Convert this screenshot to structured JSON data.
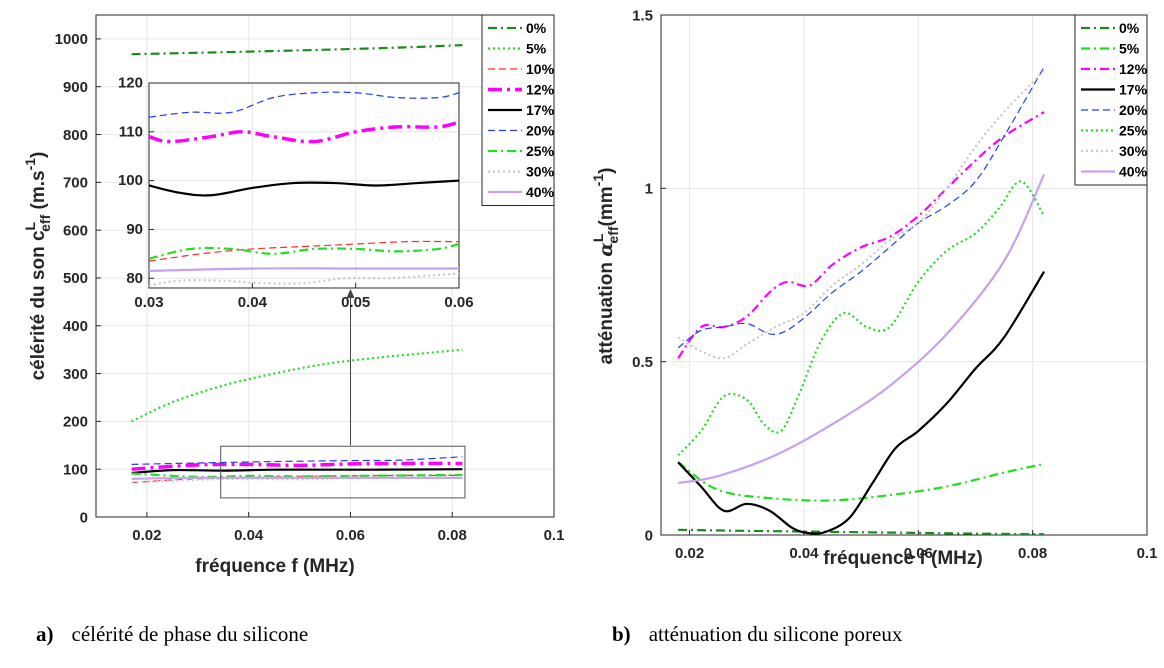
{
  "captions": {
    "a": {
      "letter": "a)",
      "text": "célérité de phase du silicone"
    },
    "b": {
      "letter": "b)",
      "text": "atténuation du silicone poreux"
    }
  },
  "chart_data": [
    {
      "type": "line",
      "id": "a",
      "xlabel": "fréquence f (MHz)",
      "ylabel": "célérité du son c",
      "ylabel_sup": "L",
      "ylabel_sub": "eff",
      "ylabel_unit": " (m.s",
      "ylabel_unit_sup": "-1",
      "ylabel_unit_end": ")",
      "xlim": [
        0.01,
        0.1
      ],
      "ylim": [
        0,
        1050
      ],
      "xticks": [
        0.02,
        0.04,
        0.06,
        0.08,
        0.1
      ],
      "xtick_labels": [
        "0.02",
        "0.04",
        "0.06",
        "0.08",
        "0.1"
      ],
      "yticks": [
        0,
        100,
        200,
        300,
        400,
        500,
        600,
        700,
        800,
        900,
        1000
      ],
      "ytick_labels": [
        "0",
        "100",
        "200",
        "300",
        "400",
        "500",
        "600",
        "700",
        "800",
        "900",
        "1000"
      ],
      "grid": true,
      "legend": "top-right",
      "series": [
        {
          "name": "0%",
          "color": "#1a8a1a",
          "dash": "dashdot",
          "width": 2.2,
          "x": [
            0.017,
            0.03,
            0.05,
            0.07,
            0.082
          ],
          "y": [
            968,
            971,
            976,
            982,
            987
          ]
        },
        {
          "name": "5%",
          "color": "#22dd22",
          "dash": "dot",
          "width": 2.2,
          "x": [
            0.017,
            0.025,
            0.035,
            0.045,
            0.055,
            0.065,
            0.075,
            0.082
          ],
          "y": [
            200,
            240,
            275,
            300,
            320,
            333,
            343,
            350
          ]
        },
        {
          "name": "10%",
          "color": "#ff2a2a",
          "dash": "dash",
          "width": 1.2,
          "x": [
            0.017,
            0.03,
            0.05,
            0.07,
            0.082
          ],
          "y": [
            72,
            80,
            85,
            87,
            87
          ]
        },
        {
          "name": "12%",
          "color": "#ff00ff",
          "dash": "dashdot",
          "width": 3.5,
          "x": [
            0.017,
            0.03,
            0.04,
            0.05,
            0.06,
            0.07,
            0.082
          ],
          "y": [
            100,
            109,
            110,
            108,
            111,
            112,
            112
          ]
        },
        {
          "name": "17%",
          "color": "#000000",
          "dash": "solid",
          "width": 2.2,
          "x": [
            0.017,
            0.025,
            0.035,
            0.045,
            0.055,
            0.065,
            0.082
          ],
          "y": [
            92,
            98,
            97,
            99,
            99,
            99,
            100
          ]
        },
        {
          "name": "20%",
          "color": "#2340e8",
          "dash": "dash",
          "width": 1.2,
          "x": [
            0.017,
            0.03,
            0.045,
            0.06,
            0.07,
            0.082
          ],
          "y": [
            110,
            113,
            116,
            118,
            119,
            126
          ]
        },
        {
          "name": "25%",
          "color": "#22dd22",
          "dash": "dashdot",
          "width": 2.2,
          "x": [
            0.017,
            0.03,
            0.04,
            0.05,
            0.06,
            0.082
          ],
          "y": [
            91,
            84,
            86,
            85,
            86,
            88
          ]
        },
        {
          "name": "30%",
          "color": "#c8c8c8",
          "dash": "dot",
          "width": 2.2,
          "x": [
            0.017,
            0.03,
            0.04,
            0.05,
            0.06,
            0.082
          ],
          "y": [
            72,
            78,
            80,
            79,
            81,
            82
          ]
        },
        {
          "name": "40%",
          "color": "#c8a0f0",
          "dash": "solid",
          "width": 2.2,
          "x": [
            0.017,
            0.03,
            0.05,
            0.07,
            0.082
          ],
          "y": [
            80,
            82,
            82,
            82,
            82
          ]
        }
      ],
      "inset": {
        "xlim": [
          0.03,
          0.06
        ],
        "ylim": [
          78,
          120
        ],
        "xticks": [
          0.03,
          0.04,
          0.05,
          0.06
        ],
        "xtick_labels": [
          "0.03",
          "0.04",
          "0.05",
          "0.06"
        ],
        "yticks": [
          80,
          90,
          100,
          110,
          120
        ],
        "ytick_labels": [
          "80",
          "90",
          "100",
          "110",
          "120"
        ],
        "zoom_box": {
          "x": [
            0.0345,
            0.0825
          ],
          "y": [
            40,
            148
          ]
        },
        "series": [
          {
            "name": "20%",
            "x": [
              0.03,
              0.034,
              0.038,
              0.042,
              0.046,
              0.05,
              0.054,
              0.058,
              0.06
            ],
            "y": [
              113,
              114,
              114,
              117,
              118,
              118,
              117,
              117,
              118
            ]
          },
          {
            "name": "12%",
            "x": [
              0.03,
              0.032,
              0.036,
              0.039,
              0.042,
              0.046,
              0.05,
              0.054,
              0.058,
              0.06
            ],
            "y": [
              109,
              108,
              109,
              110,
              109,
              108,
              110,
              111,
              111,
              112
            ]
          },
          {
            "name": "17%",
            "x": [
              0.03,
              0.033,
              0.036,
              0.04,
              0.044,
              0.048,
              0.052,
              0.056,
              0.06
            ],
            "y": [
              99,
              97.5,
              97,
              98.5,
              99.5,
              99.5,
              99,
              99.5,
              100
            ]
          },
          {
            "name": "10%",
            "x": [
              0.03,
              0.035,
              0.04,
              0.045,
              0.05,
              0.055,
              0.06
            ],
            "y": [
              83.5,
              85,
              86,
              86.5,
              87,
              87.5,
              87.5
            ]
          },
          {
            "name": "25%",
            "x": [
              0.03,
              0.034,
              0.038,
              0.042,
              0.046,
              0.05,
              0.054,
              0.058,
              0.06
            ],
            "y": [
              84,
              86,
              86,
              85,
              86,
              86,
              85.5,
              86,
              87
            ]
          },
          {
            "name": "40%",
            "x": [
              0.03,
              0.04,
              0.05,
              0.06
            ],
            "y": [
              81.5,
              82,
              82,
              82
            ]
          },
          {
            "name": "30%",
            "x": [
              0.03,
              0.033,
              0.037,
              0.041,
              0.045,
              0.049,
              0.053,
              0.057,
              0.06
            ],
            "y": [
              78.5,
              79.5,
              79.5,
              79,
              79,
              80,
              80,
              80.5,
              81
            ]
          }
        ]
      }
    },
    {
      "type": "line",
      "id": "b",
      "xlabel": "fréquence f (MHz)",
      "ylabel": "atténuation ",
      "ylabel_greek": "α",
      "ylabel_sup": "L",
      "ylabel_sub": "eff",
      "ylabel_unit": "(mm",
      "ylabel_unit_sup": "-1",
      "ylabel_unit_end": ")",
      "xlim": [
        0.015,
        0.1
      ],
      "ylim": [
        0,
        1.5
      ],
      "xticks": [
        0.02,
        0.04,
        0.06,
        0.08,
        0.1
      ],
      "xtick_labels": [
        "0.02",
        "0.04",
        "0.06",
        "0.08",
        "0.1"
      ],
      "yticks": [
        0,
        0.5,
        1,
        1.5
      ],
      "ytick_labels": [
        "0",
        "0.5",
        "1",
        "1.5"
      ],
      "grid": true,
      "legend": "top-right",
      "series": [
        {
          "name": "0%",
          "color": "#1a8a1a",
          "dash": "dashdot",
          "width": 2.2,
          "x": [
            0.018,
            0.03,
            0.05,
            0.07,
            0.082
          ],
          "y": [
            0.015,
            0.012,
            0.008,
            0.004,
            0.002
          ]
        },
        {
          "name": "5%",
          "color": "#22dd22",
          "dash": "dashdot",
          "width": 2.2,
          "x": [
            0.018,
            0.025,
            0.035,
            0.045,
            0.055,
            0.065,
            0.075,
            0.082
          ],
          "y": [
            0.21,
            0.13,
            0.105,
            0.1,
            0.115,
            0.14,
            0.18,
            0.205
          ]
        },
        {
          "name": "12%",
          "color": "#ff00ff",
          "dash": "dashdot",
          "width": 2.2,
          "x": [
            0.018,
            0.022,
            0.026,
            0.03,
            0.034,
            0.037,
            0.041,
            0.045,
            0.05,
            0.055,
            0.06,
            0.065,
            0.07,
            0.075,
            0.082
          ],
          "y": [
            0.51,
            0.6,
            0.6,
            0.63,
            0.7,
            0.73,
            0.72,
            0.78,
            0.83,
            0.86,
            0.92,
            1.0,
            1.08,
            1.15,
            1.22
          ]
        },
        {
          "name": "17%",
          "color": "#000000",
          "dash": "solid",
          "width": 2.2,
          "x": [
            0.018,
            0.022,
            0.026,
            0.03,
            0.034,
            0.038,
            0.041,
            0.044,
            0.048,
            0.052,
            0.056,
            0.06,
            0.065,
            0.07,
            0.075,
            0.082
          ],
          "y": [
            0.21,
            0.14,
            0.07,
            0.09,
            0.07,
            0.02,
            0.005,
            0.01,
            0.05,
            0.15,
            0.25,
            0.3,
            0.38,
            0.48,
            0.57,
            0.76
          ]
        },
        {
          "name": "20%",
          "color": "#2340e8",
          "dash": "dash",
          "width": 1.2,
          "x": [
            0.018,
            0.022,
            0.026,
            0.03,
            0.034,
            0.037,
            0.041,
            0.045,
            0.05,
            0.055,
            0.06,
            0.065,
            0.07,
            0.075,
            0.082
          ],
          "y": [
            0.54,
            0.59,
            0.6,
            0.61,
            0.58,
            0.59,
            0.64,
            0.7,
            0.76,
            0.83,
            0.9,
            0.95,
            1.02,
            1.15,
            1.35
          ]
        },
        {
          "name": "25%",
          "color": "#22dd22",
          "dash": "dot",
          "width": 2.2,
          "x": [
            0.018,
            0.022,
            0.026,
            0.03,
            0.033,
            0.036,
            0.039,
            0.043,
            0.047,
            0.051,
            0.055,
            0.06,
            0.065,
            0.07,
            0.074,
            0.078,
            0.082
          ],
          "y": [
            0.23,
            0.3,
            0.4,
            0.39,
            0.32,
            0.3,
            0.4,
            0.56,
            0.64,
            0.6,
            0.6,
            0.73,
            0.82,
            0.87,
            0.94,
            1.02,
            0.92
          ]
        },
        {
          "name": "30%",
          "color": "#c8c8c8",
          "dash": "dot",
          "width": 2.2,
          "x": [
            0.018,
            0.022,
            0.026,
            0.03,
            0.035,
            0.04,
            0.045,
            0.05,
            0.055,
            0.06,
            0.065,
            0.07,
            0.075,
            0.082
          ],
          "y": [
            0.57,
            0.53,
            0.51,
            0.55,
            0.6,
            0.64,
            0.72,
            0.78,
            0.85,
            0.9,
            1.0,
            1.12,
            1.22,
            1.34
          ]
        },
        {
          "name": "40%",
          "color": "#c8a0f0",
          "dash": "solid",
          "width": 2.2,
          "x": [
            0.018,
            0.025,
            0.035,
            0.045,
            0.055,
            0.065,
            0.075,
            0.082
          ],
          "y": [
            0.15,
            0.17,
            0.23,
            0.32,
            0.43,
            0.58,
            0.79,
            1.04
          ]
        }
      ]
    }
  ]
}
